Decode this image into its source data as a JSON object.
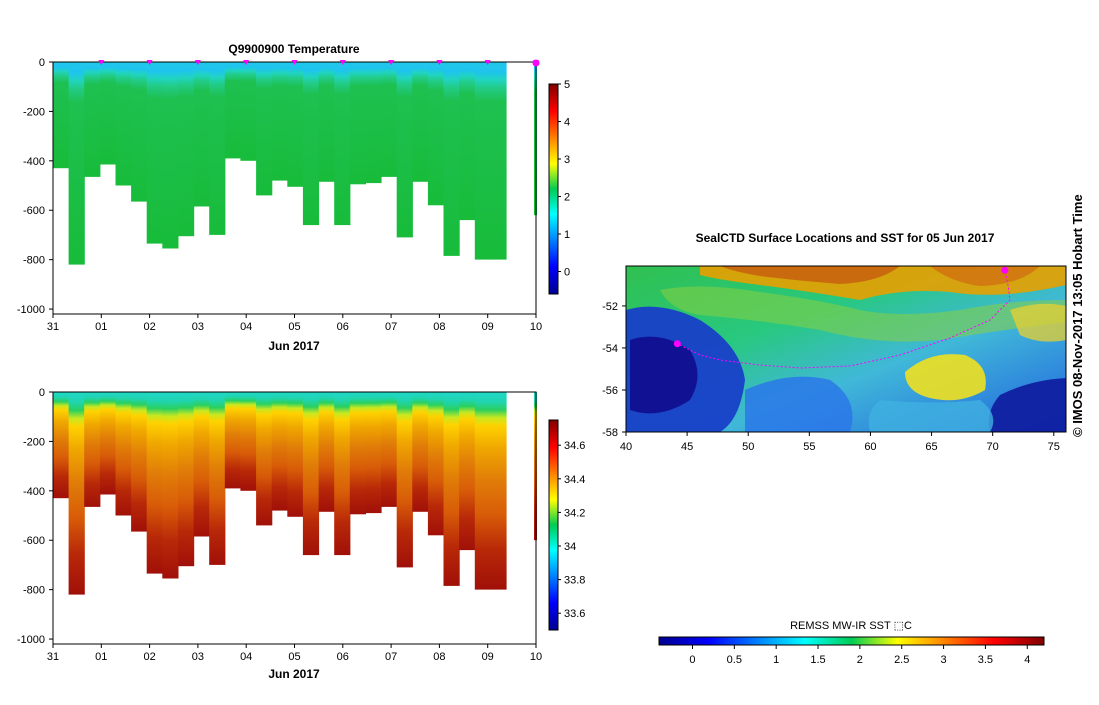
{
  "chart_data": [
    {
      "type": "heatmap",
      "panel": "temperature-section",
      "title": "Q9900900  Temperature",
      "xlabel": "Jun 2017",
      "x_ticks": [
        "31",
        "01",
        "02",
        "03",
        "04",
        "05",
        "06",
        "07",
        "08",
        "09",
        "10"
      ],
      "y_ticks": [
        "0",
        "-200",
        "-400",
        "-600",
        "-800",
        "-1000"
      ],
      "ylim": [
        -1020,
        0
      ],
      "colorbar": {
        "range": [
          -0.6,
          5.0
        ],
        "ticks": [
          "0",
          "1",
          "2",
          "3",
          "4",
          "5"
        ]
      },
      "profile_depths_m": [
        430,
        820,
        465,
        415,
        500,
        565,
        735,
        755,
        705,
        585,
        700,
        390,
        400,
        540,
        480,
        505,
        660,
        485,
        660,
        495,
        490,
        465,
        710,
        485,
        580,
        785,
        640,
        800,
        800
      ],
      "surface_value": 1.1,
      "deep_value": 2.1
    },
    {
      "type": "heatmap",
      "panel": "salinity-section",
      "title": "",
      "xlabel": "Jun 2017",
      "x_ticks": [
        "31",
        "01",
        "02",
        "03",
        "04",
        "05",
        "06",
        "07",
        "08",
        "09",
        "10"
      ],
      "y_ticks": [
        "0",
        "-200",
        "-400",
        "-600",
        "-800",
        "-1000"
      ],
      "ylim": [
        -1020,
        0
      ],
      "colorbar": {
        "range": [
          33.5,
          34.75
        ],
        "ticks": [
          "33.6",
          "33.8",
          "34",
          "34.2",
          "34.4",
          "34.6"
        ]
      },
      "profile_depths_m": [
        430,
        820,
        465,
        415,
        500,
        565,
        735,
        755,
        705,
        585,
        700,
        390,
        400,
        540,
        480,
        505,
        660,
        485,
        660,
        495,
        490,
        465,
        710,
        485,
        580,
        785,
        640,
        800,
        800
      ]
    },
    {
      "type": "heatmap",
      "panel": "sst-map",
      "title": "SealCTD Surface Locations and SST for 05 Jun 2017",
      "x_ticks": [
        "40",
        "45",
        "50",
        "55",
        "60",
        "65",
        "70",
        "75"
      ],
      "y_ticks": [
        "-52",
        "-54",
        "-56",
        "-58"
      ],
      "xlim": [
        40,
        76
      ],
      "ylim": [
        -58,
        -50.1
      ],
      "track_markers": [
        {
          "lon": 44.2,
          "lat": -53.8
        },
        {
          "lon": 71.0,
          "lat": -50.3
        }
      ],
      "colorbar": {
        "title": "REMSS MW-IR SST ⬚C",
        "range": [
          -0.4,
          4.2
        ],
        "ticks": [
          "0",
          "0.5",
          "1",
          "1.5",
          "2",
          "2.5",
          "3",
          "3.5",
          "4"
        ]
      }
    }
  ],
  "credit": "© IMOS 08-Nov-2017 13:05 Hobart Time",
  "colors": {
    "marker": "#ff00ff"
  }
}
